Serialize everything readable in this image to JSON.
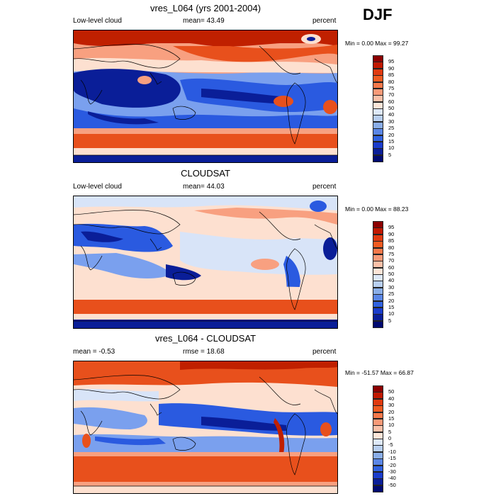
{
  "season": "DJF",
  "panels": [
    {
      "title": "vres_L064 (yrs 2001-2004)",
      "left_label": "Low-level cloud",
      "center_label": "mean=  43.49",
      "right_label": "percent",
      "minmax": "Min =   0.00 Max =  99.27",
      "colorbar": {
        "labels": [
          "95",
          "90",
          "85",
          "80",
          "75",
          "70",
          "60",
          "50",
          "40",
          "30",
          "25",
          "20",
          "15",
          "10",
          "5"
        ],
        "colors": [
          "#8c0000",
          "#c01800",
          "#e03a10",
          "#f05a20",
          "#f5784a",
          "#f89a78",
          "#fbc0a8",
          "#fde5d8",
          "#dde8f8",
          "#b8cff0",
          "#8aaee8",
          "#5a86e6",
          "#3062e0",
          "#1a3ccc",
          "#0a1e98",
          "#000a70"
        ]
      }
    },
    {
      "title": "CLOUDSAT",
      "left_label": "Low-level cloud",
      "center_label": "mean=  44.03",
      "right_label": "percent",
      "minmax": "Min =   0.00 Max =  88.23",
      "colorbar": {
        "labels": [
          "95",
          "90",
          "85",
          "80",
          "75",
          "70",
          "60",
          "50",
          "40",
          "30",
          "25",
          "20",
          "15",
          "10",
          "5"
        ],
        "colors": [
          "#8c0000",
          "#c01800",
          "#e03a10",
          "#f05a20",
          "#f5784a",
          "#f89a78",
          "#fbc0a8",
          "#fde5d8",
          "#dde8f8",
          "#b8cff0",
          "#8aaee8",
          "#5a86e6",
          "#3062e0",
          "#1a3ccc",
          "#0a1e98",
          "#000a70"
        ]
      }
    },
    {
      "title": "vres_L064 - CLOUDSAT",
      "left_label": "mean =  -0.53",
      "center_label": "rmse =  18.68",
      "right_label": "percent",
      "minmax": "Min = -51.57 Max =  66.87",
      "colorbar": {
        "labels": [
          "50",
          "40",
          "30",
          "20",
          "15",
          "10",
          "5",
          "0",
          "-5",
          "-10",
          "-15",
          "-20",
          "-30",
          "-40",
          "-50"
        ],
        "colors": [
          "#8c0000",
          "#c01800",
          "#e03a10",
          "#f05a20",
          "#f5784a",
          "#f89a78",
          "#fbc0a8",
          "#fde5d8",
          "#dde8f8",
          "#b8cff0",
          "#8aaee8",
          "#5a86e6",
          "#3062e0",
          "#1a3ccc",
          "#0a1e98",
          "#000a70"
        ]
      }
    }
  ],
  "map_colors": {
    "deep_red": "#c02000",
    "red": "#e8501c",
    "light_red": "#f8a080",
    "pale": "#fde0d0",
    "pale_blue": "#d8e4f8",
    "light_blue": "#7aa0ee",
    "blue": "#2a5ae0",
    "deep_blue": "#0a1e98"
  }
}
